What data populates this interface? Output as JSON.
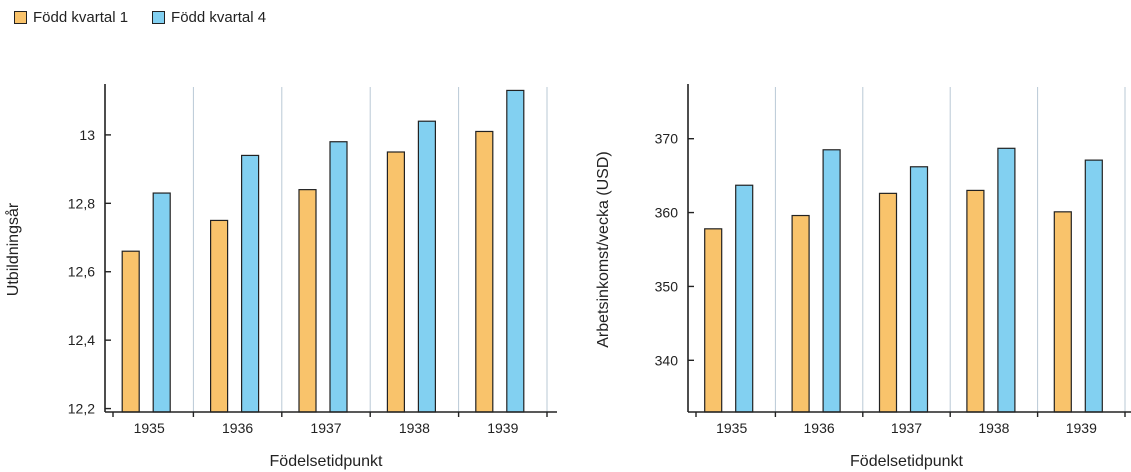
{
  "legend": {
    "series1_label": "Född kvartal 1",
    "series2_label": "Född kvartal 4"
  },
  "colors": {
    "series1": "#f9c36b",
    "series2": "#82d0f1",
    "grid": "#b9c9d6",
    "axis": "#222222"
  },
  "chart_data": [
    {
      "type": "bar",
      "title": "",
      "xlabel": "Födelsetidpunkt",
      "ylabel": "Utbildningsår",
      "categories": [
        "1935",
        "1936",
        "1937",
        "1938",
        "1939"
      ],
      "series": [
        {
          "name": "Född kvartal 1",
          "values": [
            12.66,
            12.75,
            12.84,
            12.95,
            13.01
          ]
        },
        {
          "name": "Född kvartal 4",
          "values": [
            12.83,
            12.94,
            12.98,
            13.04,
            13.13
          ]
        }
      ],
      "ylim": [
        12.19,
        13.14
      ],
      "yticks": [
        12.2,
        12.4,
        12.6,
        12.8,
        13.0
      ],
      "ytick_labels": [
        "12,2",
        "12,4",
        "12,6",
        "12,8",
        "13"
      ],
      "grid": "vertical",
      "legend": "top-left"
    },
    {
      "type": "bar",
      "title": "",
      "xlabel": "Födelsetidpunkt",
      "ylabel": "Arbetsinkomst/vecka (USD)",
      "categories": [
        "1935",
        "1936",
        "1937",
        "1938",
        "1939"
      ],
      "series": [
        {
          "name": "Född kvartal 1",
          "values": [
            357.8,
            359.6,
            362.6,
            363.0,
            360.1
          ]
        },
        {
          "name": "Född kvartal 4",
          "values": [
            363.7,
            368.5,
            366.2,
            368.7,
            367.1
          ]
        }
      ],
      "ylim": [
        333,
        377
      ],
      "yticks": [
        340,
        350,
        360,
        370
      ],
      "ytick_labels": [
        "340",
        "350",
        "360",
        "370"
      ],
      "grid": "vertical",
      "legend": "top-left"
    }
  ]
}
